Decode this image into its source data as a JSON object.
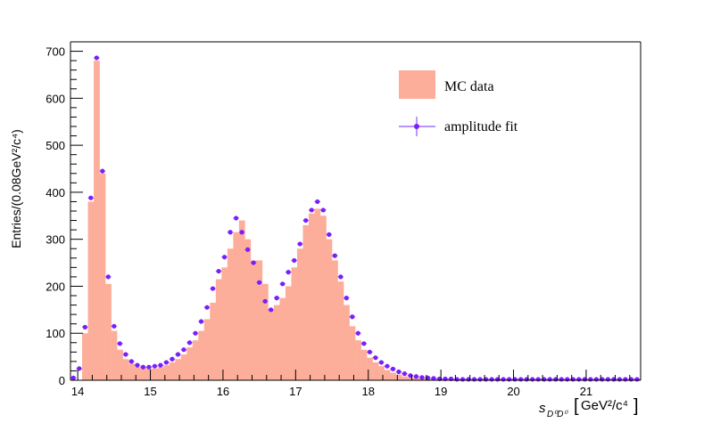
{
  "chart_data": {
    "type": "bar",
    "xlabel": "",
    "ylabel": "Entries/(0.08GeV²/c⁴)",
    "xlim": [
      13.9,
      21.75
    ],
    "ylim": [
      0,
      720
    ],
    "bin_width": 0.08,
    "x_ticks": [
      14,
      15,
      16,
      17,
      18,
      19,
      20,
      21
    ],
    "y_ticks": [
      0,
      100,
      200,
      300,
      400,
      500,
      600,
      700
    ],
    "legend": {
      "position": "top-right",
      "entries": [
        "MC data",
        "amplitude fit"
      ]
    },
    "colors": {
      "histogram": "#fdae9a",
      "fit": "#7a1ffc",
      "fit_line": "#8a55f5"
    },
    "series": [
      {
        "name": "MC data",
        "style": "histogram",
        "x_start": 13.9,
        "values": [
          0,
          0,
          100,
          380,
          680,
          440,
          205,
          105,
          65,
          45,
          35,
          28,
          27,
          25,
          25,
          28,
          32,
          38,
          45,
          55,
          70,
          85,
          105,
          130,
          165,
          215,
          240,
          280,
          315,
          340,
          300,
          255,
          255,
          205,
          150,
          160,
          175,
          200,
          240,
          280,
          330,
          355,
          365,
          350,
          300,
          255,
          210,
          160,
          115,
          85,
          65,
          48,
          38,
          30,
          22,
          16,
          12,
          8,
          6,
          5,
          4,
          3,
          3,
          2,
          2,
          2,
          2,
          2,
          1,
          1,
          1,
          1,
          1,
          1,
          1,
          1,
          1,
          1,
          1,
          1,
          1,
          1,
          1,
          1,
          1,
          1,
          1,
          1,
          1,
          1,
          1,
          1,
          1,
          1,
          1,
          1,
          1,
          1
        ]
      },
      {
        "name": "amplitude fit",
        "style": "points",
        "x_start": 13.94,
        "values": [
          5,
          25,
          113,
          388,
          686,
          445,
          220,
          115,
          78,
          55,
          40,
          32,
          28,
          28,
          30,
          32,
          38,
          45,
          55,
          65,
          80,
          100,
          125,
          155,
          195,
          232,
          262,
          315,
          345,
          315,
          278,
          250,
          208,
          168,
          150,
          175,
          205,
          230,
          255,
          290,
          340,
          362,
          380,
          362,
          310,
          265,
          220,
          175,
          135,
          100,
          78,
          60,
          48,
          38,
          30,
          24,
          18,
          14,
          10,
          8,
          6,
          5,
          4,
          3,
          3,
          3,
          2,
          2,
          2,
          2,
          2,
          2,
          2,
          2,
          2,
          2,
          2,
          2,
          2,
          2,
          2,
          2,
          2,
          2,
          2,
          2,
          2,
          2,
          2,
          2,
          2,
          2,
          2,
          2,
          2,
          2,
          2,
          2
        ]
      }
    ]
  }
}
